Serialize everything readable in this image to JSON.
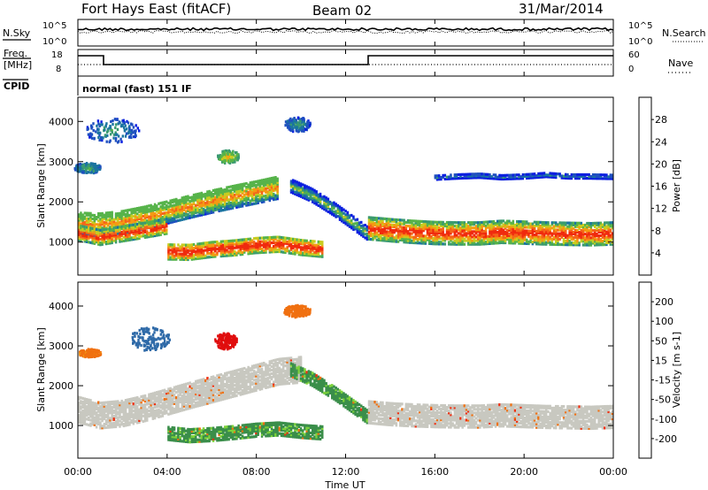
{
  "header": {
    "station": "Fort Hays East (fitACF)",
    "beam": "Beam 02",
    "date": "31/Mar/2014"
  },
  "noise_panel": {
    "left_label": "N.Sky",
    "left_ticks": [
      "10^5",
      "10^0"
    ],
    "right_ticks": [
      "10^5",
      "10^0"
    ],
    "right_label": "N.Search"
  },
  "freq_panel": {
    "left_label_line1": "Freq.",
    "left_label_line2": "[MHz]",
    "left_ticks": [
      "18",
      "8"
    ],
    "right_ticks": [
      "60",
      "0"
    ],
    "right_label": "Nave"
  },
  "cpid": {
    "label": "CPID",
    "text": "normal (fast) 151 IF"
  },
  "x_axis": {
    "ticks": [
      "00:00",
      "04:00",
      "08:00",
      "12:00",
      "16:00",
      "20:00",
      "00:00"
    ],
    "label": "Time UT"
  },
  "chart_data": [
    {
      "type": "heatmap",
      "name": "power",
      "ylabel": "Slant Range [km]",
      "yticks": [
        "1000",
        "2000",
        "3000",
        "4000"
      ],
      "ylim": [
        180,
        4600
      ],
      "xlim_hours": [
        0,
        24
      ],
      "colorbar": {
        "label": "Power [dB]",
        "ticks": [
          "4",
          "8",
          "12",
          "16",
          "20",
          "24",
          "28"
        ],
        "colors": [
          "#0a1ee0",
          "#1f4fc0",
          "#1a74a0",
          "#3a9a70",
          "#56b34a",
          "#c8cc20",
          "#f59a12",
          "#f5641a",
          "#f02a0e"
        ]
      },
      "bands": [
        {
          "name": "main-upper-band",
          "t": [
            0,
            1,
            2,
            3,
            4,
            5,
            6,
            7,
            8,
            9
          ],
          "y": [
            1500,
            1480,
            1540,
            1650,
            1780,
            1920,
            2050,
            2170,
            2280,
            2400
          ],
          "w": 280,
          "value": 16
        },
        {
          "name": "main-lower-band",
          "t": [
            0,
            1,
            2,
            3,
            4
          ],
          "y": [
            1270,
            1150,
            1240,
            1330,
            1430
          ],
          "w": 180,
          "value": 22
        },
        {
          "name": "low-echo-band",
          "t": [
            4,
            5,
            6,
            7,
            8,
            9,
            10,
            11
          ],
          "y": [
            800,
            790,
            860,
            900,
            960,
            990,
            910,
            860
          ],
          "w": 190,
          "value": 24
        },
        {
          "name": "descending-band",
          "t": [
            9.5,
            10.5,
            11.5,
            12.5,
            13
          ],
          "y": [
            2450,
            2200,
            1850,
            1450,
            1250
          ],
          "w": 160,
          "value": 10
        },
        {
          "name": "post-switch-band",
          "t": [
            13,
            14,
            15,
            16,
            17,
            18,
            19,
            20,
            21,
            22,
            23,
            24
          ],
          "y": [
            1380,
            1330,
            1290,
            1260,
            1250,
            1250,
            1290,
            1270,
            1250,
            1240,
            1230,
            1250
          ],
          "w": 270,
          "value": 22
        },
        {
          "name": "far-range-band",
          "t": [
            16,
            17,
            18,
            19,
            20,
            21,
            22,
            23,
            24
          ],
          "y": [
            2650,
            2680,
            2700,
            2660,
            2680,
            2720,
            2680,
            2680,
            2670
          ],
          "w": 60,
          "value": 4
        }
      ],
      "patches": [
        {
          "name": "patch-early-far",
          "t": 0.4,
          "y": 2870,
          "rt": 0.6,
          "ry": 130,
          "value": 6
        },
        {
          "name": "patch-morning-far",
          "t": 6.7,
          "y": 3150,
          "rt": 0.5,
          "ry": 160,
          "value": 12
        },
        {
          "name": "patch-top-left",
          "t": 1.5,
          "y": 3800,
          "rt": 1.2,
          "ry": 300,
          "value": 4
        },
        {
          "name": "patch-mid-high",
          "t": 9.8,
          "y": 3950,
          "rt": 0.6,
          "ry": 180,
          "value": 4
        }
      ]
    },
    {
      "type": "heatmap",
      "name": "velocity",
      "ylabel": "Slant Range [km]",
      "yticks": [
        "1000",
        "2000",
        "3000",
        "4000"
      ],
      "ylim": [
        180,
        4600
      ],
      "xlim_hours": [
        0,
        24
      ],
      "colorbar": {
        "label": "Velocity [m s-1]",
        "ticks": [
          "200",
          "100",
          "50",
          "15",
          "-15",
          "-50",
          "-100",
          "-200"
        ],
        "colors": [
          "#1f3fc8",
          "#2f6aa8",
          "#3a8e4a",
          "#7ed33a",
          "#c8c8c0",
          "#f0a010",
          "#f07010",
          "#f03010",
          "#e00d0d"
        ]
      },
      "bands": [
        {
          "name": "ground-scatter-band",
          "t": [
            0,
            1,
            2,
            3,
            4,
            5,
            6,
            7,
            8,
            9,
            10
          ],
          "y": [
            1450,
            1300,
            1350,
            1480,
            1640,
            1800,
            1950,
            2100,
            2250,
            2400,
            2450
          ],
          "w": 330,
          "value": 0
        },
        {
          "name": "post-switch-ground-band",
          "t": [
            13,
            14,
            15,
            16,
            17,
            18,
            19,
            20,
            21,
            22,
            23,
            24
          ],
          "y": [
            1380,
            1330,
            1300,
            1280,
            1270,
            1270,
            1300,
            1280,
            1260,
            1250,
            1240,
            1260
          ],
          "w": 280,
          "value": 0
        },
        {
          "name": "low-green-band",
          "t": [
            4,
            5,
            6,
            7,
            8,
            9,
            10,
            11
          ],
          "y": [
            850,
            790,
            820,
            870,
            930,
            960,
            900,
            860
          ],
          "w": 170,
          "value": 40
        },
        {
          "name": "descending-green-band",
          "t": [
            9.5,
            10.5,
            11.5,
            12.5,
            13
          ],
          "y": [
            2450,
            2200,
            1850,
            1450,
            1250
          ],
          "w": 160,
          "value": 40
        }
      ],
      "patches": [
        {
          "name": "patch-red-morning",
          "t": 6.6,
          "y": 3150,
          "rt": 0.5,
          "ry": 200,
          "value": -220
        },
        {
          "name": "patch-blue-early",
          "t": 3.2,
          "y": 3200,
          "rt": 0.9,
          "ry": 300,
          "value": 130
        },
        {
          "name": "patch-orange-early",
          "t": 0.5,
          "y": 2850,
          "rt": 0.5,
          "ry": 100,
          "value": -60
        },
        {
          "name": "patch-top-mixed",
          "t": 9.8,
          "y": 3900,
          "rt": 0.6,
          "ry": 150,
          "value": -80
        }
      ]
    }
  ]
}
